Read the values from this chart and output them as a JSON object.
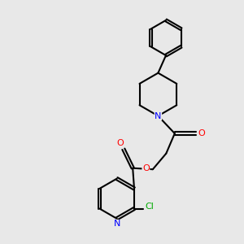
{
  "background_color": "#e8e8e8",
  "bond_color": "#000000",
  "bond_width": 1.5,
  "atom_colors": {
    "N": "#0000ff",
    "O": "#ff0000",
    "Cl": "#00aa00",
    "C": "#000000"
  },
  "font_size_atom": 8,
  "fig_size": [
    3.0,
    3.0
  ],
  "dpi": 100
}
